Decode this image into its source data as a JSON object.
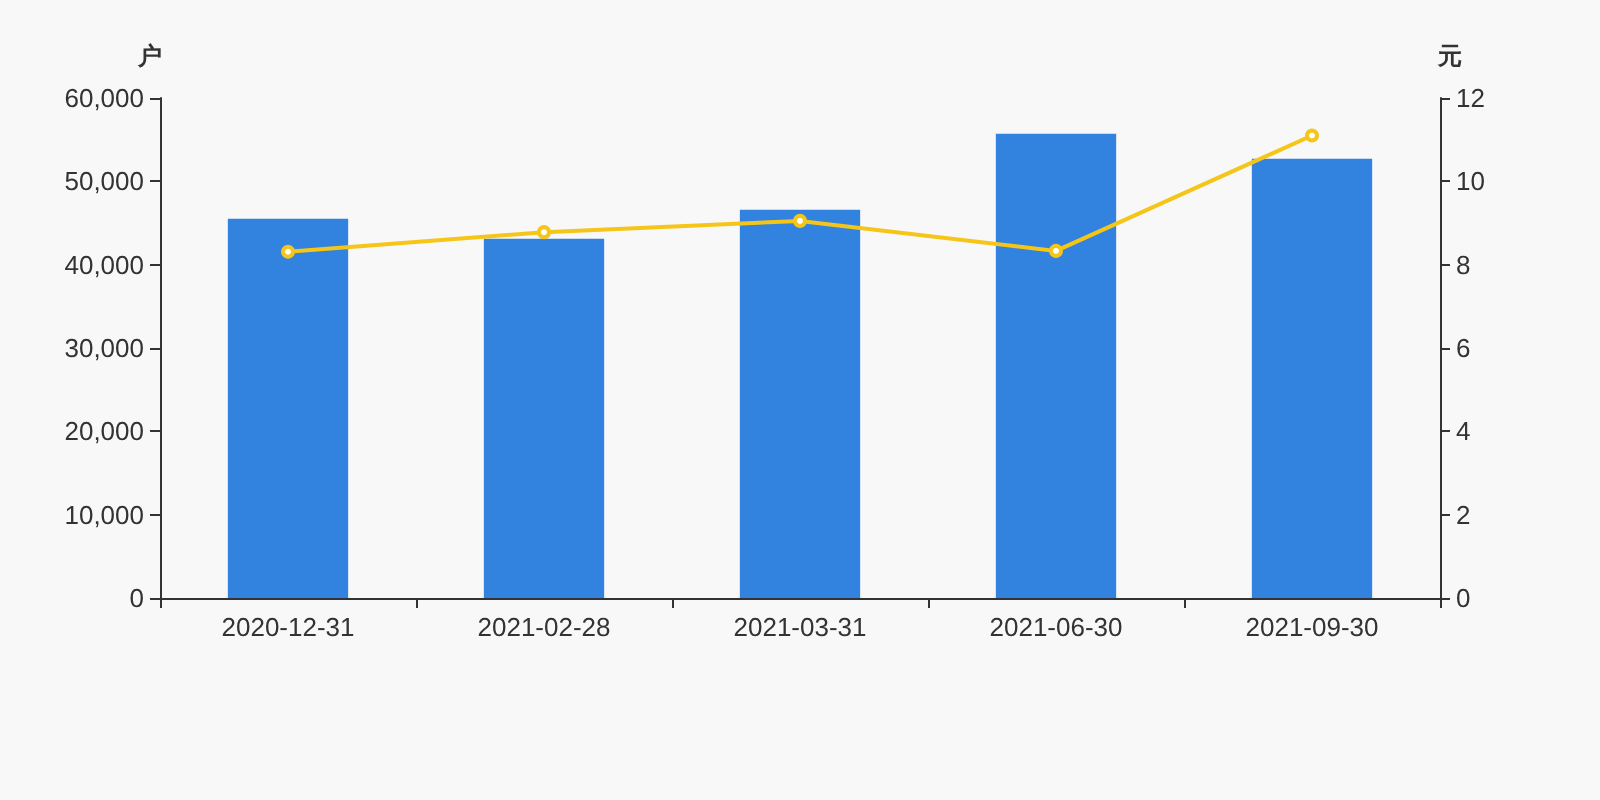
{
  "chart_data": {
    "type": "bar",
    "ylabel": "户",
    "y2label": "元",
    "categories": [
      "2020-12-31",
      "2021-02-28",
      "2021-03-31",
      "2021-06-30",
      "2021-09-30"
    ],
    "series": [
      {
        "color": "#3282e0",
        "values": [
          45500,
          43100,
          46600,
          55700,
          52700
        ]
      },
      {
        "type": "line",
        "axis": "y2",
        "color": "#f5c518",
        "marker": "circle",
        "values": [
          8.31,
          8.78,
          9.05,
          8.33,
          11.1
        ]
      }
    ],
    "ylim": [
      0,
      60000
    ],
    "yticks": [
      {
        "value": 0,
        "label": "0"
      },
      {
        "value": 10000,
        "label": "10,000"
      },
      {
        "value": 20000,
        "label": "20,000"
      },
      {
        "value": 30000,
        "label": "30,000"
      },
      {
        "value": 40000,
        "label": "40,000"
      },
      {
        "value": 50000,
        "label": "50,000"
      },
      {
        "value": 60000,
        "label": "60,000"
      }
    ],
    "y2lim": [
      0,
      12
    ],
    "y2ticks": [
      0,
      2,
      4,
      6,
      8,
      10,
      12
    ],
    "grid": false
  }
}
